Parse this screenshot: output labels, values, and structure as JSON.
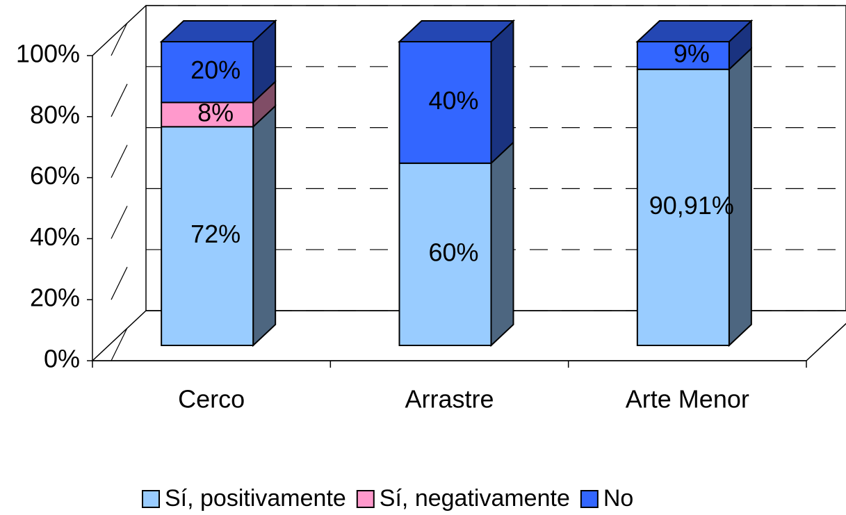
{
  "chart_data": {
    "type": "bar3d_stacked",
    "categories": [
      "Cerco",
      "Arrastre",
      "Arte Menor"
    ],
    "series": [
      {
        "name": "Sí, positivamente",
        "color": "#99ccff",
        "values": [
          72,
          60,
          90.91
        ],
        "value_labels": [
          "72%",
          "60%",
          "90,91%"
        ]
      },
      {
        "name": "Sí, negativamente",
        "color": "#ff99cc",
        "values": [
          8,
          0,
          0
        ],
        "value_labels": [
          "8%",
          null,
          null
        ]
      },
      {
        "name": "No",
        "color": "#3366ff",
        "values": [
          20,
          40,
          9.09
        ],
        "value_labels": [
          "20%",
          "40%",
          "9%"
        ]
      }
    ],
    "ylim": [
      0,
      100
    ],
    "yticks": [
      {
        "value": 0,
        "label": "0%"
      },
      {
        "value": 20,
        "label": "20%"
      },
      {
        "value": 40,
        "label": "40%"
      },
      {
        "value": 60,
        "label": "60%"
      },
      {
        "value": 80,
        "label": "80%"
      },
      {
        "value": 100,
        "label": "100%"
      }
    ],
    "grid": true,
    "legend": "bottom"
  }
}
